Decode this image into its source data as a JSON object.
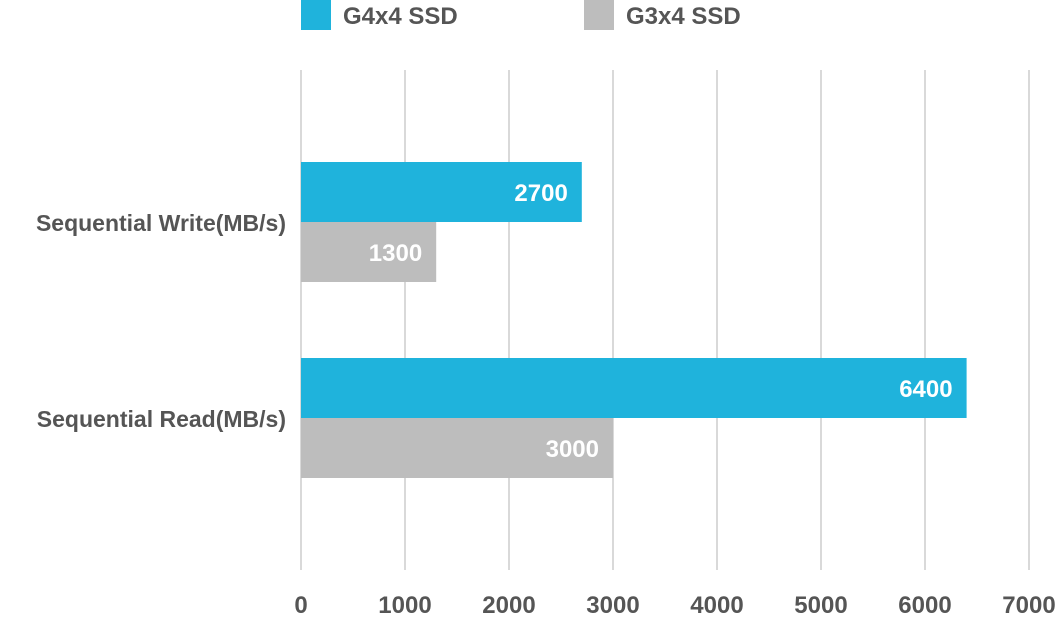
{
  "chart_data": {
    "type": "bar",
    "orientation": "horizontal",
    "categories": [
      "Sequential Write(MB/s)",
      "Sequential Read(MB/s)"
    ],
    "series": [
      {
        "name": "G4x4 SSD",
        "color": "#1fb3dc",
        "values": [
          2700,
          6400
        ],
        "labels": [
          "2700",
          "6400"
        ]
      },
      {
        "name": "G3x4 SSD",
        "color": "#bdbdbd",
        "values": [
          1300,
          3000
        ],
        "labels": [
          "1300",
          "3000"
        ]
      }
    ],
    "xlim": [
      0,
      7000
    ],
    "xticks": [
      0,
      1000,
      2000,
      3000,
      4000,
      5000,
      6000,
      7000
    ],
    "xtick_labels": [
      "0",
      "1000",
      "2000",
      "3000",
      "4000",
      "5000",
      "6000",
      "7000"
    ],
    "grid": "vertical",
    "legend_position": "top",
    "title": "",
    "xlabel": "",
    "ylabel": ""
  }
}
